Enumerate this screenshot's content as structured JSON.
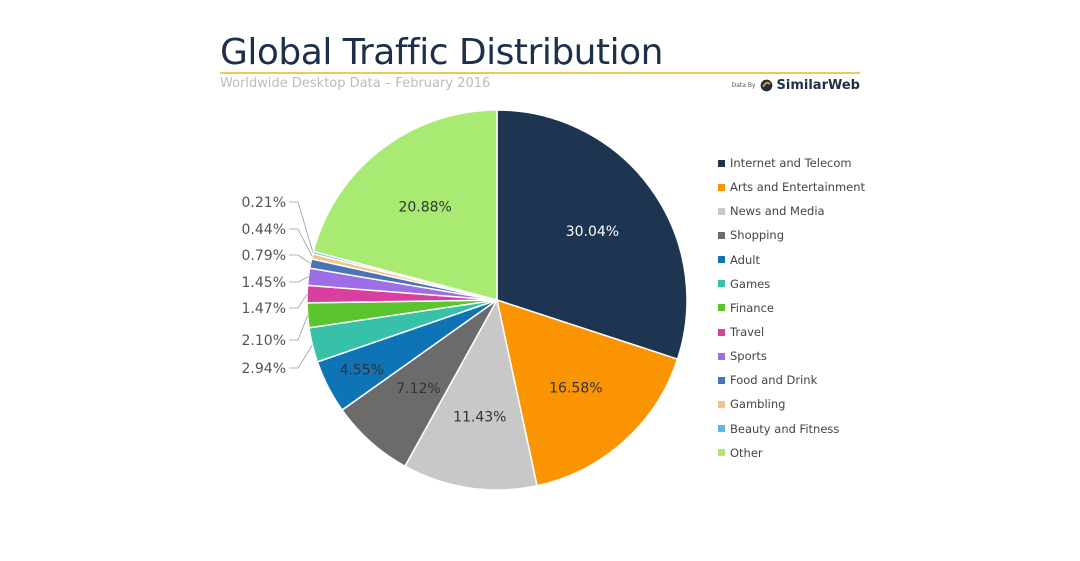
{
  "header": {
    "title": "Global Traffic Distribution",
    "subtitle": "Worldwide Desktop Data – February 2016",
    "credit_prefix": "Data By",
    "credit_brand": "SimilarWeb",
    "accent_color": "#f0c564"
  },
  "chart_data": {
    "type": "pie",
    "title": "Global Traffic Distribution",
    "subtitle": "Worldwide Desktop Data – February 2016",
    "legend_position": "right",
    "start_angle": "12 o'clock, clockwise",
    "slices": [
      {
        "label": "Internet and Telecom",
        "value": 30.04,
        "display": "30.04%",
        "color": "#1d3551",
        "label_color": "#ffffff"
      },
      {
        "label": "Arts and Entertainment",
        "value": 16.58,
        "display": "16.58%",
        "color": "#fb9402",
        "label_color": "#333333"
      },
      {
        "label": "News and Media",
        "value": 11.43,
        "display": "11.43%",
        "color": "#c8c8c8",
        "label_color": "#333333"
      },
      {
        "label": "Shopping",
        "value": 7.12,
        "display": "7.12%",
        "color": "#6b6b6b",
        "label_color": "#333333"
      },
      {
        "label": "Adult",
        "value": 4.55,
        "display": "4.55%",
        "color": "#0f74b5",
        "label_color": "#333333"
      },
      {
        "label": "Games",
        "value": 2.94,
        "display": "2.94%",
        "color": "#36c1a8",
        "label_color": "#555555"
      },
      {
        "label": "Finance",
        "value": 2.1,
        "display": "2.10%",
        "color": "#5ac52c",
        "label_color": "#555555"
      },
      {
        "label": "Travel",
        "value": 1.47,
        "display": "1.47%",
        "color": "#d83fa0",
        "label_color": "#555555"
      },
      {
        "label": "Sports",
        "value": 1.45,
        "display": "1.45%",
        "color": "#9e6ee6",
        "label_color": "#555555"
      },
      {
        "label": "Food and Drink",
        "value": 0.79,
        "display": "0.79%",
        "color": "#4b74b8",
        "label_color": "#555555"
      },
      {
        "label": "Gambling",
        "value": 0.44,
        "display": "0.44%",
        "color": "#f2c38a",
        "label_color": "#555555"
      },
      {
        "label": "Beauty and Fitness",
        "value": 0.21,
        "display": "0.21%",
        "color": "#5db8e8",
        "label_color": "#555555"
      },
      {
        "label": "Other",
        "value": 20.88,
        "display": "20.88%",
        "color": "#a8ea72",
        "label_color": "#333333"
      }
    ]
  }
}
